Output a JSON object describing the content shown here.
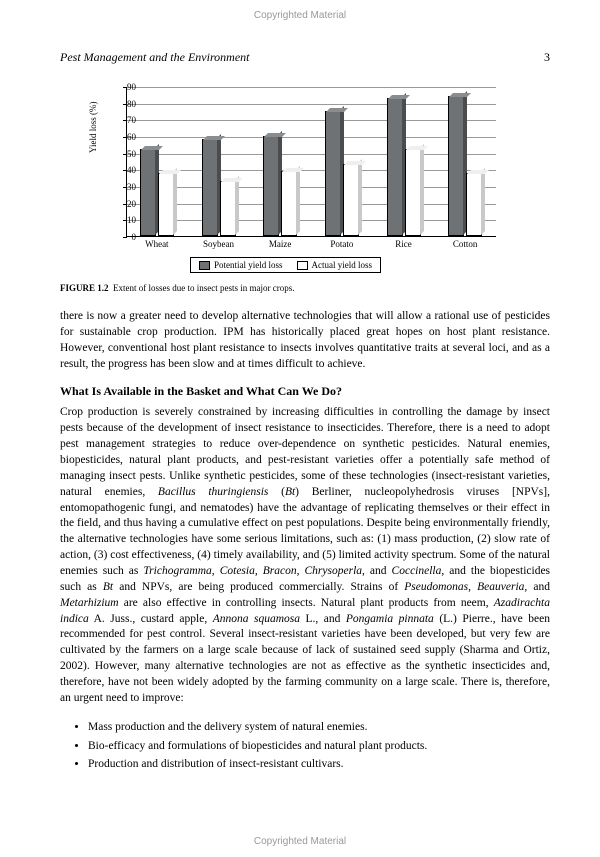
{
  "watermark": "Copyrighted Material",
  "header": {
    "title": "Pest Management and the Environment",
    "page": "3"
  },
  "chart": {
    "type": "bar",
    "ylabel": "Yield loss (%)",
    "ylim": [
      0,
      90
    ],
    "ytick_step": 10,
    "categories": [
      "Wheat",
      "Soybean",
      "Maize",
      "Potato",
      "Rice",
      "Cotton"
    ],
    "series": [
      {
        "name": "Potential yield loss",
        "color": "#6f7275",
        "values": [
          52,
          58,
          60,
          75,
          83,
          84
        ]
      },
      {
        "name": "Actual yield loss",
        "color": "#ffffff",
        "values": [
          38,
          33,
          39,
          43,
          52,
          38
        ]
      }
    ],
    "grid_color": "#9a9a9a",
    "border_color": "#000000",
    "background_color": "#ffffff"
  },
  "caption": {
    "label": "FIGURE 1.2",
    "text": "Extent of losses due to insect pests in major crops."
  },
  "para1": "there is now a greater need to develop alternative technologies that will allow a rational use of pesticides for sustainable crop production. IPM has historically placed great hopes on host plant resistance. However, conventional host plant resistance to insects involves quantitative traits at several loci, and as a result, the progress has been slow and at times difficult to achieve.",
  "heading": "What Is Available in the Basket and What Can We Do?",
  "para2": "Crop production is severely constrained by increasing difficulties in controlling the damage by insect pests because of the development of insect resistance to insecticides. Therefore, there is a need to adopt pest management strategies to reduce over-dependence on synthetic pesticides. Natural enemies, biopesticides, natural plant products, and pest-resistant varieties offer a potentially safe method of managing insect pests. Unlike synthetic pesticides, some of these technologies (insect-resistant varieties, natural enemies, Bacillus thuringiensis (Bt) Berliner, nucleopolyhedrosis viruses [NPVs], entomopathogenic fungi, and nematodes) have the advantage of replicating themselves or their effect in the field, and thus having a cumulative effect on pest populations. Despite being environmentally friendly, the alternative technologies have some serious limitations, such as: (1) mass production, (2) slow rate of action, (3) cost effectiveness, (4) timely availability, and (5) limited activity spectrum. Some of the natural enemies such as Trichogramma, Cotesia, Bracon, Chrysoperla, and Coccinella, and the biopesticides such as Bt and NPVs, are being produced commercially. Strains of Pseudomonas, Beauveria, and Metarhizium are also effective in controlling insects. Natural plant products from neem, Azadirachta indica A. Juss., custard apple, Annona squamosa L., and Pongamia pinnata (L.) Pierre., have been recommended for pest control. Several insect-resistant varieties have been developed, but very few are cultivated by the farmers on a large scale because of lack of sustained seed supply (Sharma and Ortiz, 2002). However, many alternative technologies are not as effective as the synthetic insecticides and, therefore, have not been widely adopted by the farming community on a large scale. There is, therefore, an urgent need to improve:",
  "bullets": [
    "Mass production and the delivery system of natural enemies.",
    "Bio-efficacy and formulations of biopesticides and natural plant products.",
    "Production and distribution of insect-resistant cultivars."
  ]
}
